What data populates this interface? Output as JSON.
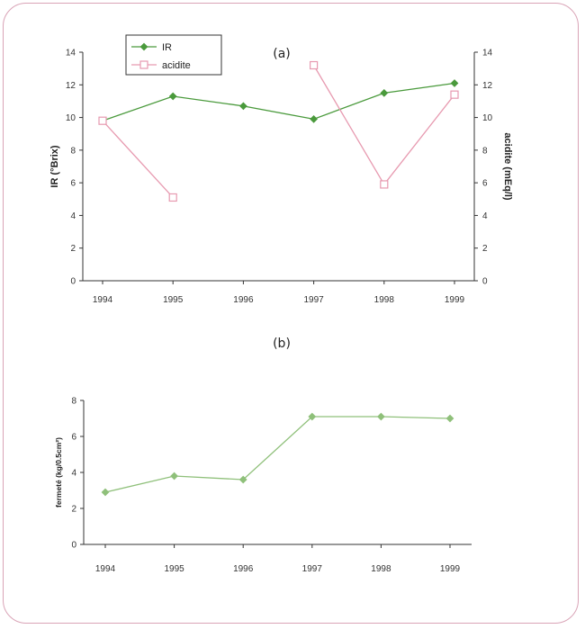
{
  "chart_data": [
    {
      "type": "line",
      "panel_label": "(a)",
      "categories": [
        "1994",
        "1995",
        "1996",
        "1997",
        "1998",
        "1999"
      ],
      "ylabel": "IR (°Brix)",
      "ylabel_right": "acidite (mEq/l)",
      "ylim": [
        0,
        14
      ],
      "ylim_right": [
        0,
        14
      ],
      "yticks": [
        "0",
        "2",
        "4",
        "6",
        "8",
        "10",
        "12",
        "14"
      ],
      "yticks_right": [
        "0",
        "2",
        "4",
        "6",
        "8",
        "10",
        "12",
        "14"
      ],
      "legend_position": "top-left",
      "series": [
        {
          "name": "IR",
          "axis": "left",
          "color": "#4a9a3c",
          "marker": "filled-diamond",
          "values": [
            9.8,
            11.3,
            10.7,
            9.9,
            11.5,
            12.1
          ]
        },
        {
          "name": "acidite",
          "axis": "right",
          "color": "#e79ab0",
          "marker": "open-square",
          "values": [
            9.8,
            5.1,
            null,
            13.2,
            5.9,
            11.4
          ]
        }
      ]
    },
    {
      "type": "line",
      "panel_label": "(b)",
      "categories": [
        "1994",
        "1995",
        "1996",
        "1997",
        "1998",
        "1999"
      ],
      "ylabel": "fermeté (kg/0.5cm²)",
      "ylim": [
        0,
        8
      ],
      "yticks": [
        "0",
        "2",
        "4",
        "6",
        "8"
      ],
      "series": [
        {
          "color": "#8fc07a",
          "marker": "filled-diamond",
          "values": [
            2.9,
            3.8,
            3.6,
            7.1,
            7.1,
            7.0
          ]
        }
      ]
    }
  ]
}
